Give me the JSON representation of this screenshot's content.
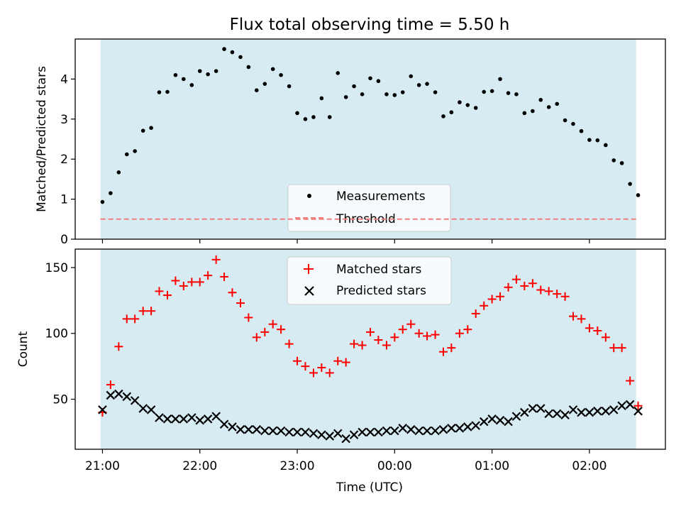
{
  "title": "Flux total observing time = 5.50 h",
  "chart_data": [
    {
      "type": "scatter",
      "title": "Flux total observing time = 5.50 h",
      "xlabel": "",
      "ylabel": "Matched/Predicted stars",
      "ylim": [
        0,
        5.0
      ],
      "yticks": [
        "0",
        "1",
        "2",
        "3",
        "4"
      ],
      "xticks": [
        "21:00",
        "22:00",
        "23:00",
        "00:00",
        "01:00",
        "02:00"
      ],
      "xlim_hours_after_2100": [
        -0.28,
        5.78
      ],
      "observing_window_hours_after_2100": [
        -0.02,
        5.48
      ],
      "legend_position": "lower center",
      "grid": false,
      "colors": {
        "measurements": "#000000",
        "threshold": "#f08080",
        "window": "#add8e6"
      },
      "series": [
        {
          "name": "Measurements",
          "style": "dots",
          "x": [
            0.0,
            0.083,
            0.167,
            0.25,
            0.333,
            0.417,
            0.5,
            0.583,
            0.667,
            0.75,
            0.833,
            0.917,
            1.0,
            1.083,
            1.167,
            1.25,
            1.333,
            1.417,
            1.5,
            1.583,
            1.667,
            1.75,
            1.833,
            1.917,
            2.0,
            2.083,
            2.167,
            2.25,
            2.333,
            2.417,
            2.5,
            2.583,
            2.667,
            2.75,
            2.833,
            2.917,
            3.0,
            3.083,
            3.167,
            3.25,
            3.333,
            3.417,
            3.5,
            3.583,
            3.667,
            3.75,
            3.833,
            3.917,
            4.0,
            4.083,
            4.167,
            4.25,
            4.333,
            4.417,
            4.5,
            4.583,
            4.667,
            4.75,
            4.833,
            4.917,
            5.0,
            5.083,
            5.167,
            5.25,
            5.333,
            5.417,
            5.5
          ],
          "y": [
            0.93,
            1.15,
            1.67,
            2.12,
            2.2,
            2.71,
            2.78,
            3.67,
            3.68,
            4.1,
            4.0,
            3.85,
            4.2,
            4.12,
            4.2,
            4.75,
            4.67,
            4.55,
            4.3,
            3.72,
            3.88,
            4.25,
            4.1,
            3.82,
            3.15,
            3.0,
            3.05,
            3.52,
            3.05,
            4.15,
            3.55,
            3.82,
            3.62,
            4.02,
            3.95,
            3.62,
            3.6,
            3.67,
            4.07,
            3.85,
            3.88,
            3.67,
            3.07,
            3.17,
            3.42,
            3.35,
            3.28,
            3.68,
            3.7,
            4.0,
            3.65,
            3.62,
            3.15,
            3.2,
            3.48,
            3.3,
            3.38,
            2.97,
            2.88,
            2.7,
            2.48,
            2.47,
            2.35,
            1.97,
            1.9,
            1.38,
            1.1
          ]
        },
        {
          "name": "Threshold",
          "style": "dashed-line",
          "y": [
            0.5
          ]
        }
      ]
    },
    {
      "type": "scatter",
      "xlabel": "Time (UTC)",
      "ylabel": "Count",
      "ylim": [
        12,
        164
      ],
      "yticks": [
        "50",
        "100",
        "150"
      ],
      "xticks": [
        "21:00",
        "22:00",
        "23:00",
        "00:00",
        "01:00",
        "02:00"
      ],
      "legend_position": "upper center",
      "grid": false,
      "colors": {
        "matched": "#ff0000",
        "predicted": "#000000",
        "window": "#add8e6"
      },
      "series": [
        {
          "name": "Matched stars",
          "marker": "+",
          "x": [
            0.0,
            0.083,
            0.167,
            0.25,
            0.333,
            0.417,
            0.5,
            0.583,
            0.667,
            0.75,
            0.833,
            0.917,
            1.0,
            1.083,
            1.167,
            1.25,
            1.333,
            1.417,
            1.5,
            1.583,
            1.667,
            1.75,
            1.833,
            1.917,
            2.0,
            2.083,
            2.167,
            2.25,
            2.333,
            2.417,
            2.5,
            2.583,
            2.667,
            2.75,
            2.833,
            2.917,
            3.0,
            3.083,
            3.167,
            3.25,
            3.333,
            3.417,
            3.5,
            3.583,
            3.667,
            3.75,
            3.833,
            3.917,
            4.0,
            4.083,
            4.167,
            4.25,
            4.333,
            4.417,
            4.5,
            4.583,
            4.667,
            4.75,
            4.833,
            4.917,
            5.0,
            5.083,
            5.167,
            5.25,
            5.333,
            5.417,
            5.5
          ],
          "y": [
            40,
            61,
            90,
            111,
            111,
            117,
            117,
            132,
            129,
            140,
            136,
            139,
            139,
            144,
            156,
            143,
            131,
            123,
            112,
            97,
            101,
            107,
            103,
            92,
            79,
            75,
            70,
            74,
            70,
            79,
            78,
            92,
            91,
            101,
            95,
            91,
            97,
            103,
            107,
            100,
            98,
            99,
            86,
            89,
            100,
            103,
            115,
            121,
            126,
            128,
            135,
            141,
            136,
            138,
            133,
            132,
            130,
            128,
            113,
            111,
            104,
            102,
            97,
            89,
            89,
            64,
            45
          ]
        },
        {
          "name": "Predicted stars",
          "marker": "x",
          "x": [
            0.0,
            0.083,
            0.167,
            0.25,
            0.333,
            0.417,
            0.5,
            0.583,
            0.667,
            0.75,
            0.833,
            0.917,
            1.0,
            1.083,
            1.167,
            1.25,
            1.333,
            1.417,
            1.5,
            1.583,
            1.667,
            1.75,
            1.833,
            1.917,
            2.0,
            2.083,
            2.167,
            2.25,
            2.333,
            2.417,
            2.5,
            2.583,
            2.667,
            2.75,
            2.833,
            2.917,
            3.0,
            3.083,
            3.167,
            3.25,
            3.333,
            3.417,
            3.5,
            3.583,
            3.667,
            3.75,
            3.833,
            3.917,
            4.0,
            4.083,
            4.167,
            4.25,
            4.333,
            4.417,
            4.5,
            4.583,
            4.667,
            4.75,
            4.833,
            4.917,
            5.0,
            5.083,
            5.167,
            5.25,
            5.333,
            5.417,
            5.5
          ],
          "y": [
            42,
            53,
            54,
            52,
            49,
            43,
            42,
            36,
            35,
            35,
            35,
            36,
            34,
            35,
            37,
            31,
            29,
            27,
            27,
            27,
            26,
            26,
            26,
            25,
            25,
            25,
            24,
            23,
            22,
            24,
            20,
            23,
            25,
            25,
            25,
            26,
            26,
            28,
            27,
            26,
            26,
            26,
            27,
            28,
            28,
            29,
            30,
            33,
            35,
            34,
            33,
            37,
            40,
            43,
            43,
            39,
            39,
            38,
            42,
            40,
            40,
            41,
            41,
            42,
            45,
            46,
            41
          ]
        }
      ]
    }
  ]
}
